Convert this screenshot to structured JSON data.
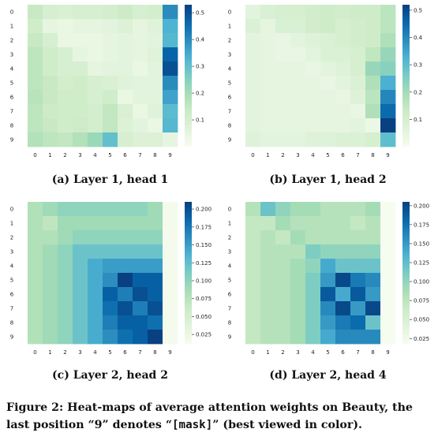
{
  "figure_caption": {
    "prefix": "Figure 2: Heat-maps of average attention weights on Beauty, the last position “9” denotes “",
    "code": "[mask]",
    "suffix": "” (best viewed in color)."
  },
  "chart_data": [
    {
      "type": "heatmap",
      "caption": "(a) Layer 1, head 1",
      "x_ticks": [
        "0",
        "1",
        "2",
        "3",
        "4",
        "5",
        "6",
        "7",
        "8",
        "9"
      ],
      "y_ticks": [
        "0",
        "1",
        "2",
        "3",
        "4",
        "5",
        "6",
        "7",
        "8",
        "9"
      ],
      "colorbar": {
        "min": 0.0,
        "max": 0.53,
        "ticks": [
          0.1,
          0.2,
          0.3,
          0.4,
          0.5
        ],
        "labels": [
          "0.1",
          "0.2",
          "0.3",
          "0.4",
          "0.5"
        ]
      },
      "values": [
        [
          0.14,
          0.1,
          0.09,
          0.1,
          0.1,
          0.11,
          0.13,
          0.1,
          0.11,
          0.4
        ],
        [
          0.12,
          0.05,
          0.04,
          0.05,
          0.05,
          0.06,
          0.08,
          0.05,
          0.07,
          0.33
        ],
        [
          0.14,
          0.1,
          0.04,
          0.04,
          0.04,
          0.05,
          0.06,
          0.05,
          0.06,
          0.32
        ],
        [
          0.16,
          0.12,
          0.1,
          0.05,
          0.04,
          0.05,
          0.06,
          0.05,
          0.07,
          0.47
        ],
        [
          0.16,
          0.12,
          0.1,
          0.1,
          0.05,
          0.06,
          0.06,
          0.04,
          0.06,
          0.5
        ],
        [
          0.16,
          0.14,
          0.11,
          0.12,
          0.1,
          0.09,
          0.07,
          0.06,
          0.06,
          0.4
        ],
        [
          0.17,
          0.14,
          0.12,
          0.12,
          0.1,
          0.12,
          0.04,
          0.06,
          0.06,
          0.36
        ],
        [
          0.16,
          0.13,
          0.12,
          0.12,
          0.11,
          0.15,
          0.09,
          0.04,
          0.07,
          0.31
        ],
        [
          0.16,
          0.14,
          0.12,
          0.13,
          0.11,
          0.15,
          0.08,
          0.06,
          0.04,
          0.32
        ],
        [
          0.18,
          0.16,
          0.15,
          0.18,
          0.22,
          0.3,
          0.1,
          0.08,
          0.08,
          0.05
        ]
      ]
    },
    {
      "type": "heatmap",
      "caption": "(b) Layer 1, head 2",
      "x_ticks": [
        "0",
        "1",
        "2",
        "3",
        "4",
        "5",
        "6",
        "7",
        "8",
        "9"
      ],
      "y_ticks": [
        "0",
        "1",
        "2",
        "3",
        "4",
        "5",
        "6",
        "7",
        "8",
        "9"
      ],
      "colorbar": {
        "min": 0.0,
        "max": 0.52,
        "ticks": [
          0.1,
          0.2,
          0.3,
          0.4,
          0.5
        ],
        "labels": [
          "0.1",
          "0.2",
          "0.3",
          "0.4",
          "0.5"
        ]
      },
      "values": [
        [
          0.06,
          0.09,
          0.1,
          0.1,
          0.11,
          0.12,
          0.11,
          0.12,
          0.12,
          0.16
        ],
        [
          0.08,
          0.05,
          0.09,
          0.09,
          0.11,
          0.12,
          0.1,
          0.11,
          0.12,
          0.16
        ],
        [
          0.06,
          0.05,
          0.04,
          0.06,
          0.07,
          0.08,
          0.1,
          0.11,
          0.12,
          0.18
        ],
        [
          0.06,
          0.05,
          0.04,
          0.04,
          0.06,
          0.08,
          0.08,
          0.1,
          0.15,
          0.22
        ],
        [
          0.06,
          0.05,
          0.05,
          0.05,
          0.04,
          0.06,
          0.07,
          0.1,
          0.22,
          0.24
        ],
        [
          0.06,
          0.05,
          0.05,
          0.05,
          0.05,
          0.04,
          0.06,
          0.08,
          0.18,
          0.33
        ],
        [
          0.06,
          0.05,
          0.05,
          0.05,
          0.05,
          0.05,
          0.04,
          0.07,
          0.16,
          0.4
        ],
        [
          0.06,
          0.05,
          0.05,
          0.05,
          0.05,
          0.05,
          0.05,
          0.04,
          0.18,
          0.45
        ],
        [
          0.06,
          0.05,
          0.05,
          0.05,
          0.05,
          0.05,
          0.05,
          0.06,
          0.03,
          0.52
        ],
        [
          0.07,
          0.06,
          0.06,
          0.06,
          0.07,
          0.07,
          0.08,
          0.08,
          0.1,
          0.3
        ]
      ]
    },
    {
      "type": "heatmap",
      "caption": "(c) Layer 2, head 2",
      "x_ticks": [
        "0",
        "1",
        "2",
        "3",
        "4",
        "5",
        "6",
        "7",
        "8",
        "9"
      ],
      "y_ticks": [
        "0",
        "1",
        "2",
        "3",
        "4",
        "5",
        "6",
        "7",
        "8",
        "9"
      ],
      "colorbar": {
        "min": 0.012,
        "max": 0.21,
        "ticks": [
          0.025,
          0.05,
          0.075,
          0.1,
          0.125,
          0.15,
          0.175,
          0.2
        ],
        "labels": [
          "0.025",
          "0.050",
          "0.075",
          "0.100",
          "0.125",
          "0.150",
          "0.175",
          "0.200"
        ]
      },
      "values": [
        [
          0.08,
          0.09,
          0.1,
          0.1,
          0.1,
          0.1,
          0.1,
          0.1,
          0.09,
          0.015
        ],
        [
          0.08,
          0.07,
          0.09,
          0.09,
          0.09,
          0.09,
          0.09,
          0.09,
          0.09,
          0.015
        ],
        [
          0.08,
          0.08,
          0.09,
          0.1,
          0.1,
          0.1,
          0.1,
          0.1,
          0.1,
          0.015
        ],
        [
          0.08,
          0.09,
          0.1,
          0.12,
          0.12,
          0.12,
          0.12,
          0.12,
          0.12,
          0.015
        ],
        [
          0.08,
          0.09,
          0.1,
          0.12,
          0.14,
          0.15,
          0.15,
          0.15,
          0.15,
          0.015
        ],
        [
          0.08,
          0.09,
          0.1,
          0.12,
          0.14,
          0.16,
          0.21,
          0.19,
          0.19,
          0.015
        ],
        [
          0.08,
          0.09,
          0.1,
          0.12,
          0.14,
          0.19,
          0.17,
          0.2,
          0.19,
          0.015
        ],
        [
          0.08,
          0.09,
          0.1,
          0.12,
          0.14,
          0.18,
          0.2,
          0.17,
          0.2,
          0.015
        ],
        [
          0.08,
          0.09,
          0.1,
          0.12,
          0.14,
          0.17,
          0.19,
          0.19,
          0.18,
          0.015
        ],
        [
          0.08,
          0.09,
          0.1,
          0.12,
          0.14,
          0.16,
          0.18,
          0.19,
          0.21,
          0.015
        ]
      ]
    },
    {
      "type": "heatmap",
      "caption": "(d) Layer 2, head 4",
      "x_ticks": [
        "0",
        "1",
        "2",
        "3",
        "4",
        "5",
        "6",
        "7",
        "8",
        "9"
      ],
      "y_ticks": [
        "0",
        "1",
        "2",
        "3",
        "4",
        "5",
        "6",
        "7",
        "8",
        "9"
      ],
      "colorbar": {
        "min": 0.018,
        "max": 0.205,
        "ticks": [
          0.025,
          0.05,
          0.075,
          0.1,
          0.125,
          0.15,
          0.175,
          0.2
        ],
        "labels": [
          "0.025",
          "0.050",
          "0.075",
          "0.100",
          "0.125",
          "0.150",
          "0.175",
          "0.200"
        ]
      },
      "values": [
        [
          0.08,
          0.12,
          0.1,
          0.09,
          0.09,
          0.08,
          0.08,
          0.08,
          0.09,
          0.018
        ],
        [
          0.07,
          0.07,
          0.09,
          0.08,
          0.08,
          0.08,
          0.08,
          0.07,
          0.08,
          0.018
        ],
        [
          0.07,
          0.08,
          0.07,
          0.09,
          0.08,
          0.08,
          0.08,
          0.08,
          0.08,
          0.018
        ],
        [
          0.07,
          0.08,
          0.08,
          0.08,
          0.11,
          0.1,
          0.1,
          0.1,
          0.1,
          0.018
        ],
        [
          0.07,
          0.08,
          0.08,
          0.09,
          0.1,
          0.14,
          0.12,
          0.12,
          0.12,
          0.018
        ],
        [
          0.07,
          0.08,
          0.08,
          0.09,
          0.11,
          0.15,
          0.2,
          0.17,
          0.16,
          0.018
        ],
        [
          0.07,
          0.08,
          0.08,
          0.09,
          0.11,
          0.19,
          0.14,
          0.19,
          0.15,
          0.018
        ],
        [
          0.07,
          0.08,
          0.08,
          0.09,
          0.11,
          0.16,
          0.2,
          0.15,
          0.2,
          0.018
        ],
        [
          0.07,
          0.08,
          0.08,
          0.09,
          0.11,
          0.15,
          0.17,
          0.18,
          0.12,
          0.018
        ],
        [
          0.07,
          0.08,
          0.08,
          0.09,
          0.11,
          0.14,
          0.16,
          0.16,
          0.16,
          0.018
        ]
      ]
    }
  ]
}
